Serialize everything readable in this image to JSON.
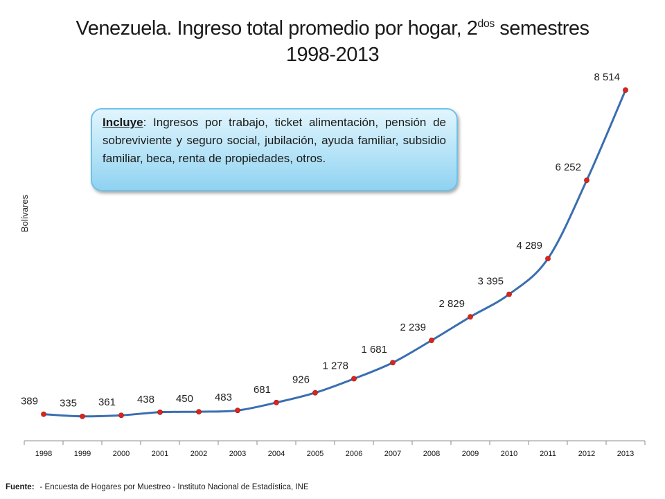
{
  "title": {
    "main": "Venezuela. Ingreso total promedio por hogar, 2",
    "superscript": "dos",
    "suffix": " semestres",
    "line2": "1998-2013"
  },
  "note": {
    "label": "Incluye",
    "text": ": Ingresos por trabajo, ticket alimentación, pensión de sobreviviente y seguro social, jubilación, ayuda familiar, subsidio familiar, beca, renta de propiedades, otros."
  },
  "footer": {
    "label": "Fuente:",
    "text": "- Encuesta de Hogares por Muestreo  - Instituto Nacional de Estadística, INE"
  },
  "chart_data": {
    "type": "line",
    "x": [
      "1998",
      "1999",
      "2000",
      "2001",
      "2002",
      "2003",
      "2004",
      "2005",
      "2006",
      "2007",
      "2008",
      "2009",
      "2010",
      "2011",
      "2012",
      "2013"
    ],
    "values": [
      389,
      335,
      361,
      438,
      450,
      483,
      681,
      926,
      1278,
      1681,
      2239,
      2829,
      3395,
      4289,
      6252,
      8514
    ],
    "value_labels": [
      "389",
      "335",
      "361",
      "438",
      "450",
      "483",
      "681",
      "926",
      "1 278",
      "1 681",
      "2 239",
      "2 829",
      "3 395",
      "4 289",
      "6 252",
      "8 514"
    ],
    "ylabel": "Bolívares",
    "ylim": [
      0,
      9000
    ],
    "grid": false,
    "line_color": "#3a6eb0",
    "marker_color": "#d9261c"
  }
}
